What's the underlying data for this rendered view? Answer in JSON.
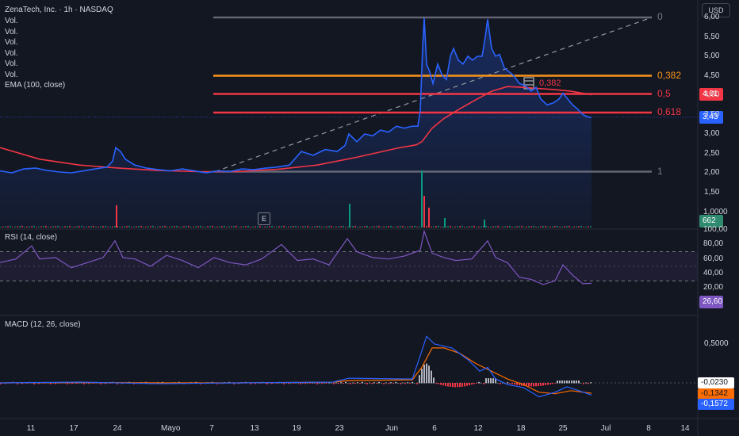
{
  "header": {
    "title": "ZenaTech, Inc. · 1h · NASDAQ",
    "legend_lines": [
      "Vol.",
      "Vol.",
      "Vol.",
      "Vol.",
      "Vol.",
      "Vol."
    ],
    "ema_label": "EMA (100, close)",
    "currency": "USD"
  },
  "price_axis": {
    "ticks": [
      "6,00",
      "5,50",
      "5,00",
      "4,50",
      "4,00",
      "3,50",
      "3,00",
      "2,50",
      "2,00",
      "1,50",
      "1,0000"
    ],
    "ema_badge": "4,01",
    "last_price_badge": "3,43",
    "volume_badge": "662",
    "colors": {
      "ema": "#f23645",
      "price": "#2962ff",
      "volume": "#089981"
    }
  },
  "fib": {
    "levels": [
      {
        "value": "0",
        "color": "#787b86"
      },
      {
        "value": "0,382",
        "color": "#f7931a"
      },
      {
        "value": "0,5",
        "color": "#f23645"
      },
      {
        "value": "0,618",
        "color": "#f23645"
      },
      {
        "value": "1",
        "color": "#787b86"
      }
    ],
    "overlap_text": "0,382"
  },
  "earnings_marker": "E",
  "rsi": {
    "title": "RSI (14, close)",
    "ticks": [
      "100,00",
      "80,00",
      "60,00",
      "40,00",
      "20,00"
    ],
    "badge": "26,60",
    "color": "#7e57c2"
  },
  "macd": {
    "title": "MACD (12, 26, close)",
    "ticks": [
      "0,5000"
    ],
    "badges": [
      {
        "value": "-0,0230",
        "color": "#ffffff",
        "text": "#131722"
      },
      {
        "value": "-0,1342",
        "color": "#ff6d00",
        "text": "#131722"
      },
      {
        "value": "-0,1572",
        "color": "#2962ff",
        "text": "#ffffff"
      }
    ]
  },
  "time_axis": {
    "labels": [
      "11",
      "17",
      "24",
      "Mayo",
      "7",
      "13",
      "19",
      "23",
      "Jun",
      "6",
      "12",
      "18",
      "25",
      "Jul",
      "8",
      "14"
    ]
  },
  "chart_data": {
    "type": "line",
    "price_series": [
      [
        0,
        2.05
      ],
      [
        15,
        2.0
      ],
      [
        30,
        2.1
      ],
      [
        45,
        2.12
      ],
      [
        60,
        2.06
      ],
      [
        75,
        2.02
      ],
      [
        90,
        2.0
      ],
      [
        105,
        2.05
      ],
      [
        120,
        2.1
      ],
      [
        135,
        2.15
      ],
      [
        142,
        2.3
      ],
      [
        146,
        2.65
      ],
      [
        152,
        2.55
      ],
      [
        158,
        2.35
      ],
      [
        170,
        2.2
      ],
      [
        185,
        2.12
      ],
      [
        200,
        2.08
      ],
      [
        215,
        2.05
      ],
      [
        230,
        2.1
      ],
      [
        245,
        2.05
      ],
      [
        260,
        2.0
      ],
      [
        275,
        2.05
      ],
      [
        290,
        2.03
      ],
      [
        305,
        2.1
      ],
      [
        320,
        2.08
      ],
      [
        335,
        2.12
      ],
      [
        350,
        2.15
      ],
      [
        365,
        2.2
      ],
      [
        380,
        2.55
      ],
      [
        395,
        2.45
      ],
      [
        410,
        2.6
      ],
      [
        425,
        2.55
      ],
      [
        435,
        2.7
      ],
      [
        440,
        3.0
      ],
      [
        450,
        2.8
      ],
      [
        460,
        3.0
      ],
      [
        470,
        2.95
      ],
      [
        480,
        3.1
      ],
      [
        490,
        3.05
      ],
      [
        500,
        3.2
      ],
      [
        510,
        3.15
      ],
      [
        520,
        3.2
      ],
      [
        527,
        3.2
      ],
      [
        530,
        3.6
      ],
      [
        533,
        5.2
      ],
      [
        535,
        5.98
      ],
      [
        538,
        4.8
      ],
      [
        542,
        4.6
      ],
      [
        546,
        4.3
      ],
      [
        552,
        4.8
      ],
      [
        558,
        4.5
      ],
      [
        563,
        4.4
      ],
      [
        568,
        5.0
      ],
      [
        572,
        5.2
      ],
      [
        578,
        4.9
      ],
      [
        584,
        4.8
      ],
      [
        590,
        5.0
      ],
      [
        596,
        4.9
      ],
      [
        602,
        5.0
      ],
      [
        608,
        5.0
      ],
      [
        612,
        5.5
      ],
      [
        615,
        5.95
      ],
      [
        620,
        5.2
      ],
      [
        625,
        5.0
      ],
      [
        630,
        5.05
      ],
      [
        636,
        4.7
      ],
      [
        642,
        4.6
      ],
      [
        648,
        4.5
      ],
      [
        655,
        4.3
      ],
      [
        662,
        4.25
      ],
      [
        670,
        4.1
      ],
      [
        676,
        4.2
      ],
      [
        682,
        3.9
      ],
      [
        690,
        3.75
      ],
      [
        698,
        3.8
      ],
      [
        705,
        3.9
      ],
      [
        710,
        4.05
      ],
      [
        716,
        3.9
      ],
      [
        722,
        3.75
      ],
      [
        728,
        3.65
      ],
      [
        735,
        3.5
      ],
      [
        742,
        3.43
      ],
      [
        746,
        3.43
      ]
    ],
    "ema_series": [
      [
        0,
        2.65
      ],
      [
        50,
        2.35
      ],
      [
        100,
        2.2
      ],
      [
        150,
        2.12
      ],
      [
        200,
        2.06
      ],
      [
        250,
        2.03
      ],
      [
        300,
        2.03
      ],
      [
        350,
        2.09
      ],
      [
        400,
        2.2
      ],
      [
        450,
        2.4
      ],
      [
        500,
        2.63
      ],
      [
        525,
        2.72
      ],
      [
        532,
        2.8
      ],
      [
        545,
        3.15
      ],
      [
        560,
        3.4
      ],
      [
        580,
        3.65
      ],
      [
        600,
        3.88
      ],
      [
        620,
        4.1
      ],
      [
        640,
        4.22
      ],
      [
        660,
        4.2
      ],
      [
        680,
        4.17
      ],
      [
        700,
        4.14
      ],
      [
        720,
        4.1
      ],
      [
        746,
        4.01
      ]
    ],
    "fib_levels": [
      {
        "level": 0,
        "price": 6.0
      },
      {
        "level": 0.382,
        "price": 4.5
      },
      {
        "level": 0.5,
        "price": 4.03
      },
      {
        "level": 0.618,
        "price": 3.55
      },
      {
        "level": 1,
        "price": 2.03
      }
    ],
    "volume_spikes": [
      [
        146,
        "red",
        0.28
      ],
      [
        440,
        "green",
        0.3
      ],
      [
        531,
        "green",
        0.72
      ],
      [
        534,
        "red",
        0.4
      ],
      [
        540,
        "red",
        0.25
      ],
      [
        560,
        "green",
        0.12
      ],
      [
        610,
        "green",
        0.1
      ]
    ],
    "rsi_series": [
      [
        0,
        55
      ],
      [
        20,
        60
      ],
      [
        40,
        78
      ],
      [
        50,
        60
      ],
      [
        70,
        62
      ],
      [
        90,
        48
      ],
      [
        110,
        55
      ],
      [
        130,
        62
      ],
      [
        145,
        85
      ],
      [
        155,
        62
      ],
      [
        170,
        60
      ],
      [
        190,
        50
      ],
      [
        210,
        65
      ],
      [
        230,
        58
      ],
      [
        250,
        48
      ],
      [
        270,
        62
      ],
      [
        290,
        55
      ],
      [
        310,
        52
      ],
      [
        330,
        60
      ],
      [
        355,
        80
      ],
      [
        375,
        58
      ],
      [
        395,
        60
      ],
      [
        415,
        52
      ],
      [
        438,
        88
      ],
      [
        450,
        70
      ],
      [
        470,
        62
      ],
      [
        490,
        60
      ],
      [
        510,
        64
      ],
      [
        530,
        72
      ],
      [
        535,
        98
      ],
      [
        545,
        68
      ],
      [
        560,
        62
      ],
      [
        575,
        58
      ],
      [
        595,
        60
      ],
      [
        615,
        85
      ],
      [
        625,
        62
      ],
      [
        640,
        55
      ],
      [
        655,
        35
      ],
      [
        670,
        32
      ],
      [
        685,
        25
      ],
      [
        700,
        30
      ],
      [
        710,
        52
      ],
      [
        722,
        38
      ],
      [
        735,
        26
      ],
      [
        746,
        26.6
      ]
    ],
    "rsi_bands": {
      "upper": 70,
      "middle": 50,
      "lower": 30
    },
    "macd_blue": [
      [
        0,
        0
      ],
      [
        100,
        0.01
      ],
      [
        200,
        -0.01
      ],
      [
        300,
        0
      ],
      [
        420,
        0.01
      ],
      [
        440,
        0.06
      ],
      [
        520,
        0.05
      ],
      [
        530,
        0.35
      ],
      [
        538,
        0.6
      ],
      [
        548,
        0.5
      ],
      [
        570,
        0.45
      ],
      [
        590,
        0.3
      ],
      [
        605,
        0.15
      ],
      [
        615,
        0.2
      ],
      [
        625,
        0.05
      ],
      [
        640,
        -0.02
      ],
      [
        660,
        -0.06
      ],
      [
        680,
        -0.18
      ],
      [
        700,
        -0.12
      ],
      [
        715,
        -0.05
      ],
      [
        730,
        -0.1
      ],
      [
        746,
        -0.157
      ]
    ],
    "macd_orange": [
      [
        0,
        0
      ],
      [
        100,
        0.005
      ],
      [
        200,
        0
      ],
      [
        300,
        0
      ],
      [
        420,
        0.01
      ],
      [
        440,
        0.03
      ],
      [
        520,
        0.04
      ],
      [
        532,
        0.2
      ],
      [
        545,
        0.45
      ],
      [
        560,
        0.45
      ],
      [
        580,
        0.38
      ],
      [
        600,
        0.25
      ],
      [
        620,
        0.15
      ],
      [
        640,
        0.05
      ],
      [
        660,
        -0.02
      ],
      [
        680,
        -0.12
      ],
      [
        700,
        -0.14
      ],
      [
        720,
        -0.1
      ],
      [
        746,
        -0.134
      ]
    ],
    "macd_hist": -0.023
  }
}
